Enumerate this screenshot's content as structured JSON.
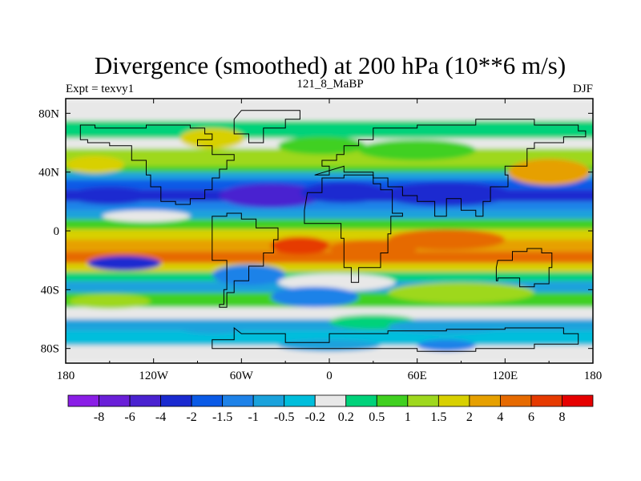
{
  "chart_data": {
    "type": "heatmap",
    "title": "Divergence (smoothed) at 200 hPa (10**6 m/s)",
    "subtitle_left": "Expt = texvy1",
    "subtitle_center": "121_8_MaBP",
    "subtitle_right": "DJF",
    "xlabel": "",
    "ylabel": "",
    "xlim": [
      -180,
      180
    ],
    "ylim": [
      -90,
      90
    ],
    "x_ticks": [
      {
        "value": -180,
        "label": "180"
      },
      {
        "value": -120,
        "label": "120W"
      },
      {
        "value": -60,
        "label": "60W"
      },
      {
        "value": 0,
        "label": "0"
      },
      {
        "value": 60,
        "label": "60E"
      },
      {
        "value": 120,
        "label": "120E"
      },
      {
        "value": 180,
        "label": "180"
      }
    ],
    "y_ticks": [
      {
        "value": 80,
        "label": "80N"
      },
      {
        "value": 40,
        "label": "40N"
      },
      {
        "value": 0,
        "label": "0"
      },
      {
        "value": -40,
        "label": "40S"
      },
      {
        "value": -80,
        "label": "80S"
      }
    ],
    "levels": [
      -8,
      -6,
      -4,
      -2,
      -1.5,
      -1,
      -0.5,
      -0.2,
      0.2,
      0.5,
      1,
      1.5,
      2,
      4,
      6,
      8
    ],
    "level_labels": [
      "-8",
      "-6",
      "-4",
      "-2",
      "-1.5",
      "-1",
      "-0.5",
      "-0.2",
      "0.2",
      "0.5",
      "1",
      "1.5",
      "2",
      "4",
      "6",
      "8"
    ],
    "colors": [
      "#8a1ee6",
      "#6a1fd8",
      "#4a22d0",
      "#1a2ad0",
      "#0a5ae6",
      "#1e82e8",
      "#1aa2dc",
      "#00bedc",
      "#e8e8e8",
      "#00d27a",
      "#40d020",
      "#9ed81e",
      "#d8d000",
      "#e6a000",
      "#e66a00",
      "#e63a00",
      "#e60000"
    ],
    "bands": [
      {
        "lat_from": 90,
        "lat_to": 75,
        "value": 0
      },
      {
        "lat_from": 75,
        "lat_to": 63,
        "value": 0.4
      },
      {
        "lat_from": 63,
        "lat_to": 56,
        "value": 0
      },
      {
        "lat_from": 56,
        "lat_to": 44,
        "value": 1.2
      },
      {
        "lat_from": 44,
        "lat_to": 40,
        "value": 0.8
      },
      {
        "lat_from": 40,
        "lat_to": 35,
        "value": -0.7
      },
      {
        "lat_from": 35,
        "lat_to": 28,
        "value": -1.6
      },
      {
        "lat_from": 28,
        "lat_to": 20,
        "value": -2.5
      },
      {
        "lat_from": 20,
        "lat_to": 14,
        "value": -1.2
      },
      {
        "lat_from": 14,
        "lat_to": 8,
        "value": -0.6
      },
      {
        "lat_from": 8,
        "lat_to": 1,
        "value": 0.6
      },
      {
        "lat_from": 1,
        "lat_to": -6,
        "value": 1.6
      },
      {
        "lat_from": -6,
        "lat_to": -14,
        "value": 3.2
      },
      {
        "lat_from": -14,
        "lat_to": -22,
        "value": 4.5
      },
      {
        "lat_from": -22,
        "lat_to": -28,
        "value": 1.6
      },
      {
        "lat_from": -28,
        "lat_to": -34,
        "value": 0.4
      },
      {
        "lat_from": -34,
        "lat_to": -42,
        "value": -0.8
      },
      {
        "lat_from": -42,
        "lat_to": -52,
        "value": 0.6
      },
      {
        "lat_from": -52,
        "lat_to": -60,
        "value": 0
      },
      {
        "lat_from": -60,
        "lat_to": -68,
        "value": -0.6
      },
      {
        "lat_from": -68,
        "lat_to": -78,
        "value": -0.4
      },
      {
        "lat_from": -78,
        "lat_to": -90,
        "value": 0
      }
    ],
    "blobs": [
      {
        "lon": -80,
        "lat": 63,
        "rlon": 22,
        "rlat": 7,
        "value": 1.6
      },
      {
        "lon": -5,
        "lat": 58,
        "rlon": 30,
        "rlat": 6,
        "value": 0.6
      },
      {
        "lon": 60,
        "lat": 55,
        "rlon": 40,
        "rlat": 7,
        "value": 0.6
      },
      {
        "lon": 150,
        "lat": 40,
        "rlon": 28,
        "rlat": 9,
        "value": 2.5
      },
      {
        "lon": -160,
        "lat": 45,
        "rlon": 20,
        "rlat": 6,
        "value": 1.6
      },
      {
        "lon": -40,
        "lat": 24,
        "rlon": 35,
        "rlat": 8,
        "value": -4.5
      },
      {
        "lon": 10,
        "lat": 26,
        "rlon": 30,
        "rlat": 7,
        "value": -3
      },
      {
        "lon": 80,
        "lat": 25,
        "rlon": 45,
        "rlat": 8,
        "value": -2.5
      },
      {
        "lon": -150,
        "lat": 24,
        "rlon": 28,
        "rlat": 6,
        "value": -2.5
      },
      {
        "lon": -125,
        "lat": 10,
        "rlon": 30,
        "rlat": 4,
        "value": 0
      },
      {
        "lon": -20,
        "lat": -10,
        "rlon": 20,
        "rlat": 6,
        "value": 6
      },
      {
        "lon": 30,
        "lat": -12,
        "rlon": 30,
        "rlat": 6,
        "value": 5
      },
      {
        "lon": 80,
        "lat": -6,
        "rlon": 40,
        "rlat": 7,
        "value": 4.5
      },
      {
        "lon": -140,
        "lat": -22,
        "rlon": 25,
        "rlat": 5,
        "value": -2.5
      },
      {
        "lon": -55,
        "lat": -30,
        "rlon": 25,
        "rlat": 7,
        "value": -1.2
      },
      {
        "lon": 5,
        "lat": -35,
        "rlon": 40,
        "rlat": 6,
        "value": 0
      },
      {
        "lon": 90,
        "lat": -42,
        "rlon": 50,
        "rlat": 7,
        "value": 1.2
      },
      {
        "lon": -10,
        "lat": -45,
        "rlon": 30,
        "rlat": 7,
        "value": -1.2
      },
      {
        "lon": -150,
        "lat": -48,
        "rlon": 28,
        "rlat": 5,
        "value": 1.2
      },
      {
        "lon": 30,
        "lat": -62,
        "rlon": 30,
        "rlat": 5,
        "value": 0.4
      },
      {
        "lon": 80,
        "lat": -65,
        "rlon": 40,
        "rlat": 5,
        "value": -0.8
      },
      {
        "lon": -80,
        "lat": -65,
        "rlon": 25,
        "rlat": 5,
        "value": -0.6
      },
      {
        "lon": 0,
        "lat": -78,
        "rlon": 35,
        "rlat": 4,
        "value": -0.8
      },
      {
        "lon": 80,
        "lat": -78,
        "rlon": 20,
        "rlat": 4,
        "value": -1.2
      }
    ],
    "coastlines": [
      [
        [
          -170,
          72
        ],
        [
          -160,
          70
        ],
        [
          -140,
          70
        ],
        [
          -125,
          72
        ],
        [
          -110,
          72
        ],
        [
          -95,
          70
        ],
        [
          -85,
          66
        ],
        [
          -80,
          62
        ],
        [
          -90,
          58
        ],
        [
          -80,
          52
        ],
        [
          -65,
          48
        ],
        [
          -70,
          42
        ],
        [
          -75,
          36
        ],
        [
          -80,
          28
        ],
        [
          -85,
          22
        ],
        [
          -95,
          18
        ],
        [
          -105,
          20
        ],
        [
          -115,
          30
        ],
        [
          -122,
          38
        ],
        [
          -125,
          48
        ],
        [
          -135,
          58
        ],
        [
          -150,
          60
        ],
        [
          -165,
          62
        ],
        [
          -170,
          66
        ]
      ],
      [
        [
          -80,
          10
        ],
        [
          -70,
          12
        ],
        [
          -60,
          8
        ],
        [
          -50,
          2
        ],
        [
          -35,
          -6
        ],
        [
          -38,
          -15
        ],
        [
          -45,
          -24
        ],
        [
          -55,
          -34
        ],
        [
          -65,
          -42
        ],
        [
          -70,
          -52
        ],
        [
          -75,
          -50
        ],
        [
          -72,
          -40
        ],
        [
          -70,
          -20
        ],
        [
          -80,
          -6
        ],
        [
          -80,
          4
        ]
      ],
      [
        [
          -15,
          26
        ],
        [
          -5,
          36
        ],
        [
          10,
          38
        ],
        [
          30,
          32
        ],
        [
          35,
          28
        ],
        [
          43,
          12
        ],
        [
          50,
          10
        ],
        [
          42,
          -2
        ],
        [
          40,
          -15
        ],
        [
          35,
          -25
        ],
        [
          20,
          -35
        ],
        [
          15,
          -25
        ],
        [
          10,
          -5
        ],
        [
          8,
          5
        ],
        [
          -5,
          5
        ],
        [
          -17,
          14
        ]
      ],
      [
        [
          -10,
          38
        ],
        [
          0,
          44
        ],
        [
          -5,
          48
        ],
        [
          5,
          52
        ],
        [
          10,
          58
        ],
        [
          20,
          62
        ],
        [
          30,
          70
        ],
        [
          60,
          72
        ],
        [
          100,
          76
        ],
        [
          140,
          72
        ],
        [
          170,
          68
        ],
        [
          175,
          64
        ],
        [
          160,
          60
        ],
        [
          140,
          56
        ],
        [
          135,
          44
        ],
        [
          120,
          38
        ],
        [
          122,
          30
        ],
        [
          110,
          20
        ],
        [
          105,
          10
        ],
        [
          100,
          14
        ],
        [
          90,
          22
        ],
        [
          80,
          10
        ],
        [
          72,
          20
        ],
        [
          60,
          24
        ],
        [
          50,
          30
        ],
        [
          40,
          36
        ],
        [
          30,
          40
        ],
        [
          20,
          40
        ],
        [
          10,
          44
        ]
      ],
      [
        [
          115,
          -20
        ],
        [
          125,
          -14
        ],
        [
          135,
          -12
        ],
        [
          145,
          -15
        ],
        [
          152,
          -25
        ],
        [
          150,
          -36
        ],
        [
          140,
          -38
        ],
        [
          130,
          -32
        ],
        [
          115,
          -34
        ],
        [
          114,
          -25
        ]
      ],
      [
        [
          -60,
          82
        ],
        [
          -30,
          82
        ],
        [
          -20,
          76
        ],
        [
          -30,
          70
        ],
        [
          -45,
          60
        ],
        [
          -55,
          66
        ],
        [
          -65,
          76
        ]
      ],
      [
        [
          -60,
          -70
        ],
        [
          -30,
          -76
        ],
        [
          0,
          -70
        ],
        [
          40,
          -68
        ],
        [
          80,
          -67
        ],
        [
          120,
          -66
        ],
        [
          160,
          -70
        ],
        [
          170,
          -77
        ],
        [
          140,
          -80
        ],
        [
          100,
          -82
        ],
        [
          60,
          -80
        ],
        [
          20,
          -80
        ],
        [
          -20,
          -80
        ],
        [
          -60,
          -80
        ],
        [
          -80,
          -74
        ],
        [
          -65,
          -66
        ]
      ]
    ]
  }
}
